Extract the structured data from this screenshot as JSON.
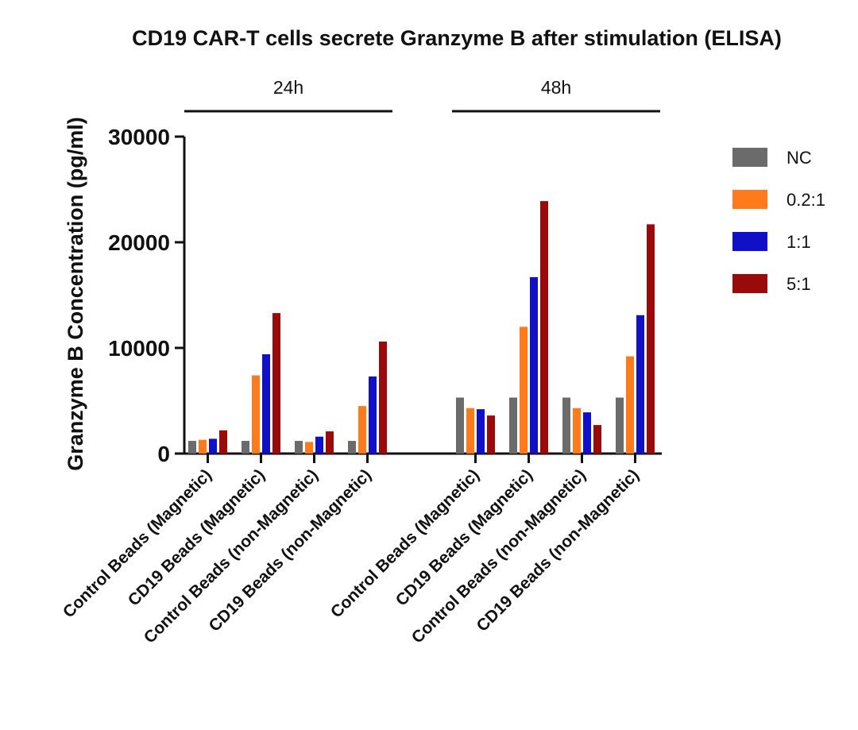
{
  "chart_data": {
    "type": "bar",
    "title": "CD19 CAR-T cells secrete Granzyme B after stimulation (ELISA)",
    "ylabel": "Granzyme B Concentration (pg/ml)",
    "xlabel": "",
    "ylim": [
      0,
      30000
    ],
    "yticks": [
      0,
      10000,
      20000,
      30000
    ],
    "legend_position": "right",
    "groups": [
      {
        "label": "24h",
        "categories": [
          "Control Beads (Magnetic)",
          "CD19 Beads (Magnetic)",
          "Control Beads (non-Magnetic)",
          "CD19 Beads (non-Magnetic)"
        ]
      },
      {
        "label": "48h",
        "categories": [
          "Control Beads (Magnetic)",
          "CD19 Beads (Magnetic)",
          "Control Beads (non-Magnetic)",
          "CD19 Beads (non-Magnetic)"
        ]
      }
    ],
    "categories": [
      "Control Beads (Magnetic)",
      "CD19 Beads (Magnetic)",
      "Control Beads (non-Magnetic)",
      "CD19 Beads (non-Magnetic)",
      "Control Beads (Magnetic)",
      "CD19 Beads (Magnetic)",
      "Control Beads (non-Magnetic)",
      "CD19 Beads (non-Magnetic)"
    ],
    "series": [
      {
        "name": "NC",
        "color": "#6b6b6b",
        "values": [
          1200,
          1200,
          1200,
          1200,
          5300,
          5300,
          5300,
          5300
        ]
      },
      {
        "name": "0.2:1",
        "color": "#ff7a1a",
        "values": [
          1300,
          7400,
          1100,
          4500,
          4300,
          12000,
          4300,
          9200
        ]
      },
      {
        "name": "1:1",
        "color": "#1010c8",
        "values": [
          1400,
          9400,
          1600,
          7300,
          4200,
          16700,
          3900,
          13100
        ]
      },
      {
        "name": "5:1",
        "color": "#9a0a0a",
        "values": [
          2200,
          13300,
          2100,
          10600,
          3600,
          23900,
          2700,
          21700
        ]
      }
    ]
  }
}
